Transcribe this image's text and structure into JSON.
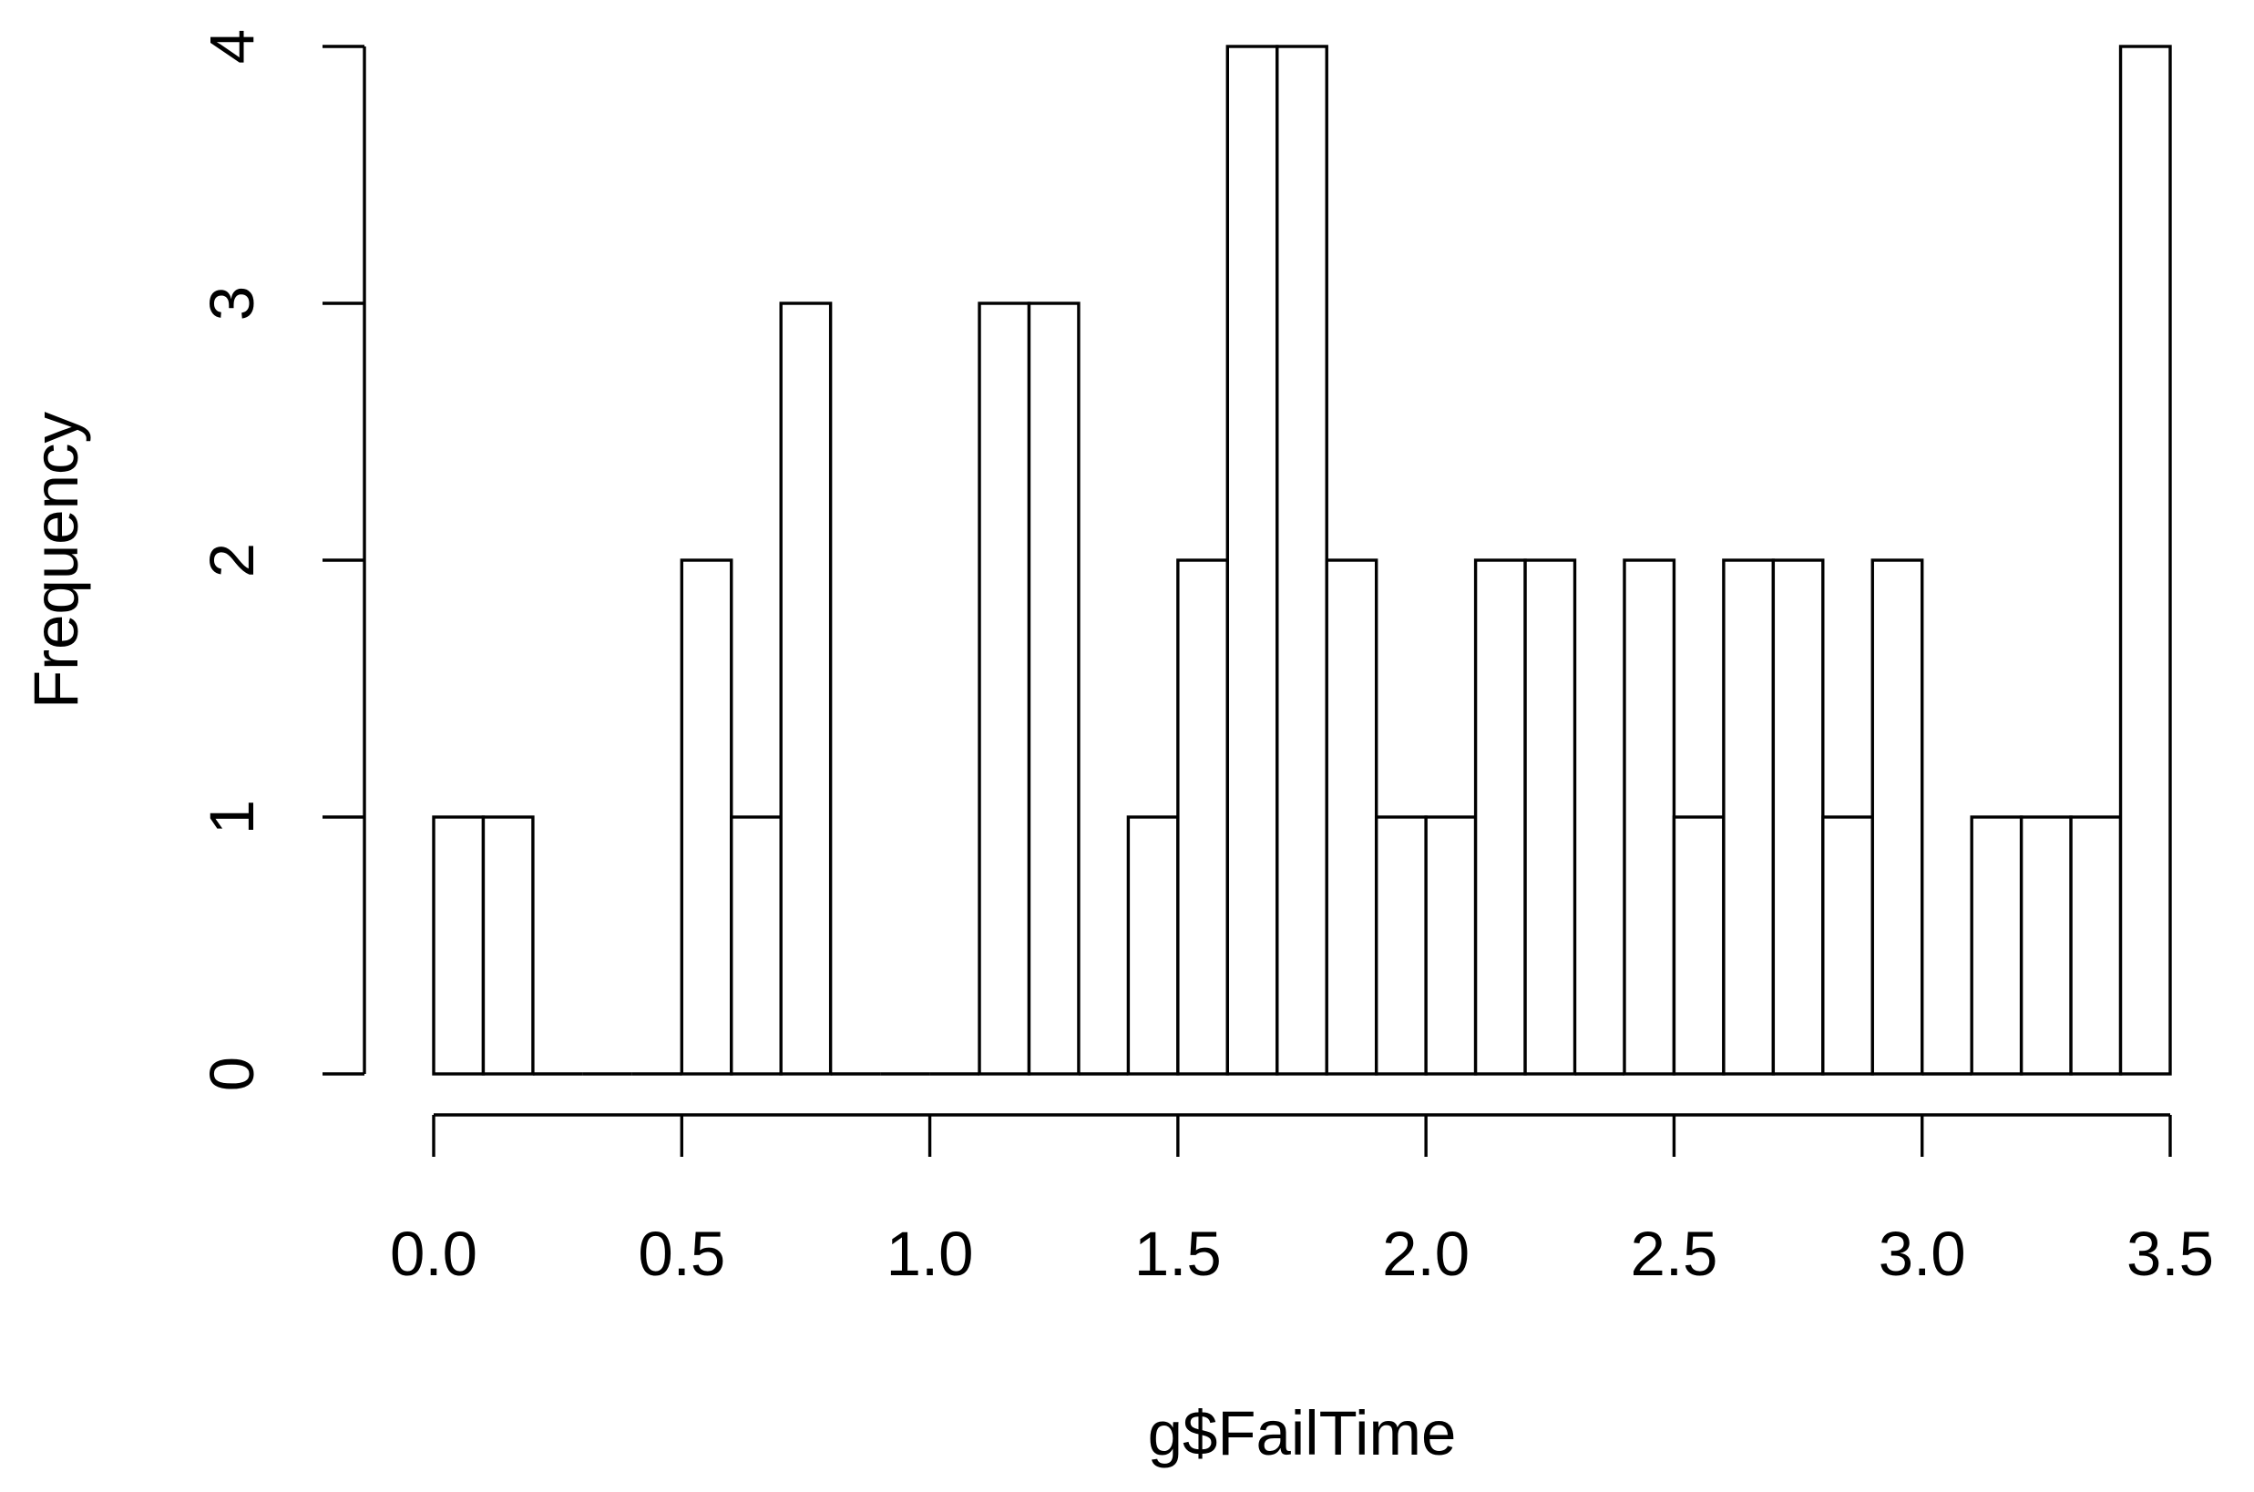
{
  "chart_data": {
    "type": "bar",
    "title": "",
    "xlabel": "g$FailTime",
    "ylabel": "Frequency",
    "xlim": [
      0,
      3.5
    ],
    "ylim": [
      0,
      4
    ],
    "x_ticks": [
      0.0,
      0.5,
      1.0,
      1.5,
      2.0,
      2.5,
      3.0,
      3.5
    ],
    "x_tick_labels": [
      "0.0",
      "0.5",
      "1.0",
      "1.5",
      "2.0",
      "2.5",
      "3.0",
      "3.5"
    ],
    "y_ticks": [
      0,
      1,
      2,
      3,
      4
    ],
    "y_tick_labels": [
      "0",
      "1",
      "2",
      "3",
      "4"
    ],
    "bin_width": 0.1,
    "bin_starts": [
      0.0,
      0.1,
      0.2,
      0.3,
      0.4,
      0.5,
      0.6,
      0.7,
      0.8,
      0.9,
      1.0,
      1.1,
      1.2,
      1.3,
      1.4,
      1.5,
      1.6,
      1.7,
      1.8,
      1.9,
      2.0,
      2.1,
      2.2,
      2.3,
      2.4,
      2.5,
      2.6,
      2.7,
      2.8,
      2.9,
      3.0,
      3.1,
      3.2,
      3.3,
      3.4
    ],
    "values": [
      1,
      1,
      0,
      0,
      0,
      2,
      1,
      3,
      0,
      0,
      0,
      3,
      3,
      0,
      1,
      2,
      4,
      4,
      2,
      1,
      1,
      2,
      2,
      0,
      2,
      1,
      2,
      2,
      1,
      2,
      0,
      1,
      1,
      1,
      4
    ],
    "grid": false,
    "legend": "none"
  }
}
